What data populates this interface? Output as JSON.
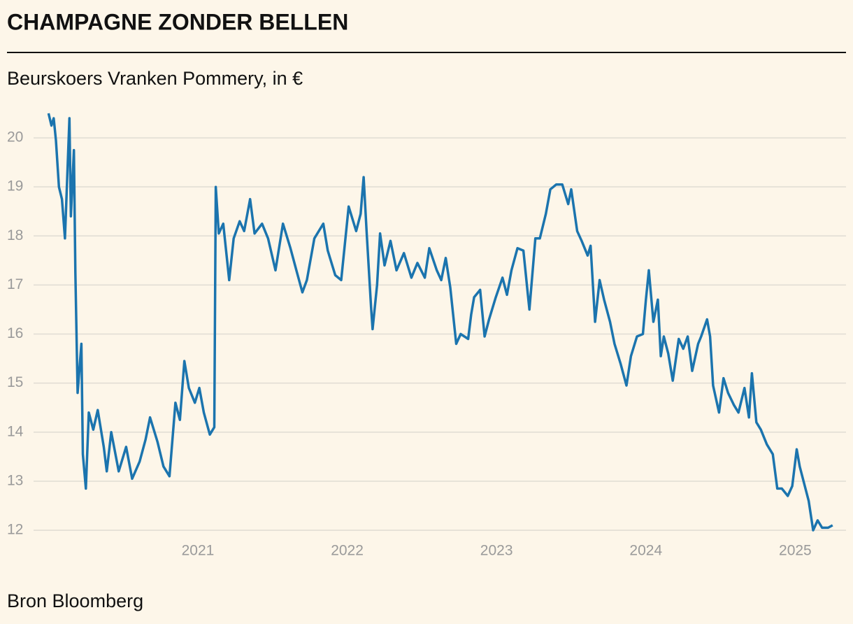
{
  "chart_data": {
    "type": "line",
    "title": "CHAMPAGNE ZONDER BELLEN",
    "subtitle": "Beurskoers Vranken Pommery, in €",
    "source": "Bron Bloomberg",
    "x": [
      2020.0,
      2020.02,
      2020.035,
      2020.05,
      2020.07,
      2020.09,
      2020.11,
      2020.14,
      2020.15,
      2020.17,
      2020.18,
      2020.195,
      2020.22,
      2020.23,
      2020.25,
      2020.27,
      2020.3,
      2020.33,
      2020.37,
      2020.39,
      2020.42,
      2020.47,
      2020.52,
      2020.56,
      2020.61,
      2020.65,
      2020.68,
      2020.73,
      2020.77,
      2020.81,
      2020.85,
      2020.88,
      2020.91,
      2020.94,
      2020.98,
      2021.01,
      2021.04,
      2021.08,
      2021.11,
      2021.12,
      2021.14,
      2021.17,
      2021.21,
      2021.24,
      2021.28,
      2021.31,
      2021.35,
      2021.38,
      2021.43,
      2021.47,
      2021.52,
      2021.57,
      2021.62,
      2021.66,
      2021.7,
      2021.73,
      2021.78,
      2021.84,
      2021.87,
      2021.92,
      2021.96,
      2022.01,
      2022.06,
      2022.09,
      2022.11,
      2022.13,
      2022.16,
      2022.17,
      2022.2,
      2022.22,
      2022.25,
      2022.29,
      2022.33,
      2022.38,
      2022.43,
      2022.47,
      2022.52,
      2022.55,
      2022.6,
      2022.63,
      2022.66,
      2022.69,
      2022.73,
      2022.76,
      2022.81,
      2022.83,
      2022.85,
      2022.89,
      2022.92,
      2022.95,
      2022.995,
      2023.04,
      2023.07,
      2023.1,
      2023.14,
      2023.18,
      2023.21,
      2023.22,
      2023.26,
      2023.29,
      2023.33,
      2023.36,
      2023.4,
      2023.44,
      2023.48,
      2023.5,
      2023.54,
      2023.57,
      2023.61,
      2023.63,
      2023.66,
      2023.69,
      2023.72,
      2023.76,
      2023.79,
      2023.83,
      2023.87,
      2023.9,
      2023.94,
      2023.98,
      2024.0,
      2024.02,
      2024.05,
      2024.08,
      2024.1,
      2024.12,
      2024.15,
      2024.18,
      2024.22,
      2024.25,
      2024.28,
      2024.31,
      2024.35,
      2024.37,
      2024.41,
      2024.43,
      2024.45,
      2024.49,
      2024.52,
      2024.55,
      2024.59,
      2024.62,
      2024.66,
      2024.69,
      2024.71,
      2024.74,
      2024.77,
      2024.81,
      2024.85,
      2024.88,
      2024.91,
      2024.95,
      2024.98,
      2025.01,
      2025.03,
      2025.06,
      2025.09,
      2025.12,
      2025.15,
      2025.18,
      2025.22,
      2025.25
    ],
    "series": [
      {
        "name": "Vranken Pommery",
        "color": "#1b74ae",
        "values": [
          20.5,
          20.25,
          20.4,
          19.95,
          19.0,
          18.75,
          17.95,
          20.4,
          18.4,
          19.75,
          17.25,
          14.8,
          15.8,
          13.55,
          12.85,
          14.4,
          14.05,
          14.45,
          13.7,
          13.2,
          14.0,
          13.2,
          13.7,
          13.05,
          13.4,
          13.85,
          14.3,
          13.8,
          13.3,
          13.1,
          14.6,
          14.25,
          15.45,
          14.9,
          14.6,
          14.9,
          14.4,
          13.95,
          14.1,
          19.0,
          18.05,
          18.25,
          17.1,
          17.95,
          18.3,
          18.1,
          18.75,
          18.05,
          18.25,
          17.95,
          17.3,
          18.25,
          17.75,
          17.3,
          16.85,
          17.1,
          17.95,
          18.25,
          17.7,
          17.2,
          17.1,
          18.6,
          18.1,
          18.45,
          19.2,
          18.1,
          16.55,
          16.1,
          17.0,
          18.05,
          17.4,
          17.9,
          17.3,
          17.65,
          17.15,
          17.45,
          17.15,
          17.75,
          17.3,
          17.1,
          17.55,
          16.95,
          15.8,
          16.0,
          15.9,
          16.4,
          16.75,
          16.9,
          15.95,
          16.3,
          16.75,
          17.15,
          16.8,
          17.3,
          17.75,
          17.7,
          16.8,
          16.5,
          17.95,
          17.95,
          18.45,
          18.95,
          19.05,
          19.05,
          18.65,
          18.95,
          18.1,
          17.9,
          17.6,
          17.8,
          16.25,
          17.1,
          16.7,
          16.25,
          15.8,
          15.4,
          14.95,
          15.55,
          15.95,
          16.0,
          16.7,
          17.3,
          16.25,
          16.7,
          15.55,
          15.95,
          15.6,
          15.05,
          15.9,
          15.7,
          15.95,
          15.25,
          15.8,
          15.95,
          16.3,
          15.95,
          14.95,
          14.4,
          15.1,
          14.8,
          14.55,
          14.4,
          14.9,
          14.3,
          15.2,
          14.2,
          14.05,
          13.75,
          13.55,
          12.85,
          12.85,
          12.7,
          12.9,
          13.65,
          13.3,
          12.95,
          12.6,
          12.0,
          12.2,
          12.05,
          12.05,
          12.1
        ]
      }
    ],
    "xlim": [
      2019.9,
      2025.34
    ],
    "xticks": [
      2021,
      2022,
      2023,
      2024,
      2025
    ],
    "ylim": [
      11.6,
      20.6
    ],
    "yticks": [
      12,
      13,
      14,
      15,
      16,
      17,
      18,
      19,
      20
    ],
    "grid": true
  }
}
